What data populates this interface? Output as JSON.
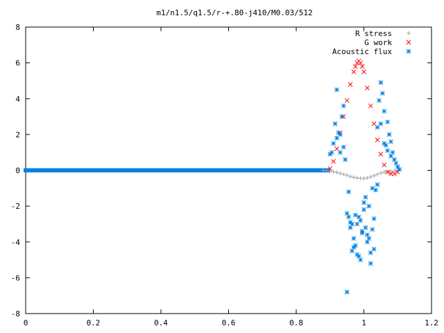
{
  "chart_data": {
    "type": "scatter",
    "title": "m1/n1.5/q1.5/r-+.80-j410/M0.03/512",
    "xlabel": "",
    "ylabel": "",
    "xlim": [
      0,
      1.2
    ],
    "ylim": [
      -8,
      8
    ],
    "xticks": [
      "0",
      "0.2",
      "0.4",
      "0.6",
      "0.8",
      "1",
      "1.2"
    ],
    "yticks": [
      "-8",
      "-6",
      "-4",
      "-2",
      "0",
      "2",
      "4",
      "6",
      "8"
    ],
    "grid": false,
    "legend_position": "top-right",
    "series": [
      {
        "name": "R stress",
        "marker": "plus",
        "color": "#a0a0a0",
        "x": [
          0.88,
          0.89,
          0.9,
          0.91,
          0.92,
          0.93,
          0.94,
          0.95,
          0.96,
          0.97,
          0.98,
          0.99,
          1.0,
          1.01,
          1.02,
          1.03,
          1.04,
          1.05,
          1.06,
          1.07,
          1.08,
          1.09,
          1.1
        ],
        "y": [
          0.0,
          -0.02,
          -0.05,
          -0.08,
          -0.12,
          -0.17,
          -0.22,
          -0.28,
          -0.34,
          -0.39,
          -0.43,
          -0.45,
          -0.45,
          -0.42,
          -0.37,
          -0.3,
          -0.22,
          -0.15,
          -0.1,
          -0.07,
          -0.05,
          -0.03,
          -0.01
        ]
      },
      {
        "name": "G work",
        "marker": "cross",
        "color": "#ff0000",
        "x": [
          0.9,
          0.91,
          0.92,
          0.93,
          0.94,
          0.95,
          0.96,
          0.97,
          0.975,
          0.98,
          0.985,
          0.99,
          0.995,
          1.0,
          1.01,
          1.02,
          1.03,
          1.04,
          1.05,
          1.06,
          1.07,
          1.08,
          1.09,
          1.1
        ],
        "y": [
          0.1,
          0.5,
          1.2,
          2.1,
          3.0,
          3.9,
          4.8,
          5.5,
          5.8,
          6.0,
          6.1,
          6.0,
          5.8,
          5.5,
          4.6,
          3.6,
          2.6,
          1.7,
          0.9,
          0.3,
          -0.1,
          -0.2,
          -0.2,
          -0.1
        ]
      },
      {
        "name": "Acoustic flux",
        "marker": "star",
        "color": "#0080e0",
        "x": [
          0.9,
          0.905,
          0.91,
          0.915,
          0.92,
          0.925,
          0.93,
          0.935,
          0.94,
          0.945,
          0.95,
          0.955,
          0.96,
          0.965,
          0.97,
          0.975,
          0.98,
          0.985,
          0.99,
          0.995,
          1.0,
          1.005,
          1.01,
          1.015,
          1.02,
          1.025,
          1.03,
          1.035,
          1.04,
          1.045,
          1.05,
          1.055,
          1.06,
          1.065,
          1.07,
          1.075,
          1.08,
          1.085,
          1.09,
          1.095,
          1.1,
          1.105,
          0.95,
          0.96,
          0.97,
          0.98,
          0.99,
          1.0,
          1.01,
          1.02,
          1.03,
          0.955,
          0.965,
          0.975,
          0.985,
          0.995,
          1.005,
          1.015,
          1.025,
          1.04,
          1.06,
          1.08,
          0.93,
          0.94,
          0.92,
          1.05,
          1.07
        ],
        "y": [
          0.9,
          1.0,
          1.5,
          2.6,
          4.5,
          2.1,
          1.0,
          3.0,
          3.6,
          0.6,
          -6.8,
          -2.6,
          -3.2,
          -4.5,
          -4.3,
          -2.5,
          -3.0,
          -4.8,
          -2.8,
          -3.5,
          -1.8,
          -3.2,
          -4.0,
          -2.0,
          -5.2,
          -3.3,
          -4.4,
          -1.1,
          -0.8,
          3.9,
          4.9,
          4.3,
          3.3,
          1.4,
          2.7,
          2.0,
          1.6,
          1.0,
          0.6,
          0.4,
          0.2,
          0.05,
          -2.4,
          -2.9,
          -3.8,
          -4.7,
          -5.0,
          -2.2,
          -3.6,
          -4.6,
          -2.7,
          -1.2,
          -3.0,
          -4.2,
          -2.6,
          -3.4,
          -1.5,
          -3.8,
          -1.0,
          2.4,
          1.5,
          0.8,
          2.0,
          1.3,
          1.8,
          2.6,
          1.1
        ]
      }
    ]
  }
}
